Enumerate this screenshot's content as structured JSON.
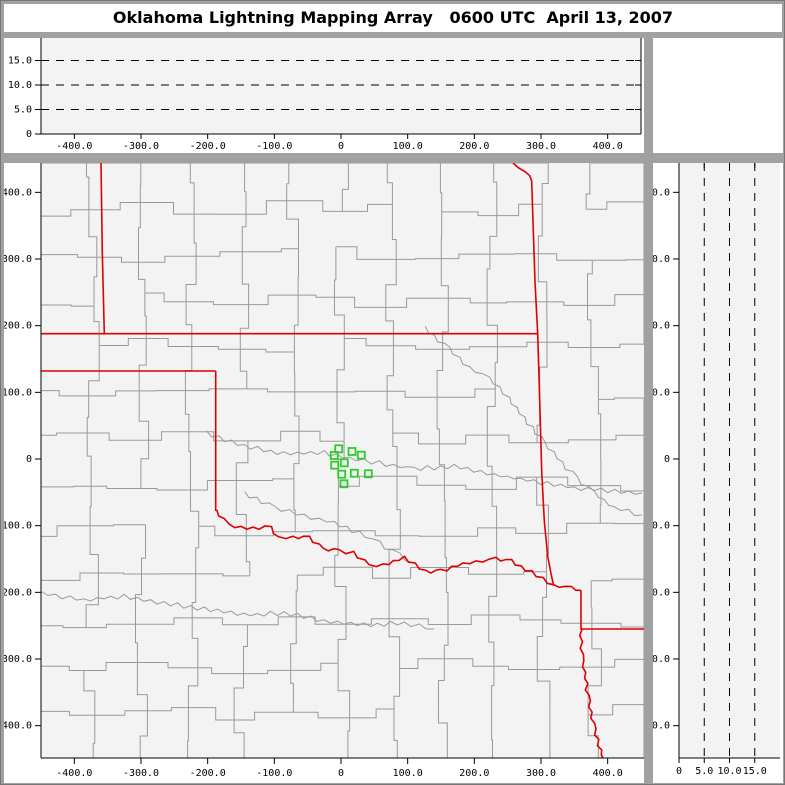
{
  "window": {
    "title": "Oklahoma Lightning Mapping Array   0600 UTC  April 13, 2007"
  },
  "colors": {
    "frame_gray": "#a1a1a1",
    "panel_white": "#ffffff",
    "plot_bg": "#f3f3f3",
    "county_line": "#999999",
    "state_border": "#e00000",
    "station_green": "#2ccc2c",
    "axis_black": "#000000"
  },
  "chart_data": {
    "type": "scatter",
    "title": "Oklahoma Lightning Mapping Array   0600 UTC  April 13, 2007",
    "description": "XLMA-style lightning mapping array display: E-W altitude cross-section (top), plan-view map with county and state borders (main), N-S altitude cross-section (right). No lightning sources plotted at this time; green squares mark LMA station locations.",
    "ew_ticks": {
      "values": [
        -400,
        -300,
        -200,
        -100,
        0,
        100,
        200,
        300,
        400
      ],
      "labels": [
        "-400.0",
        "-300.0",
        "-200.0",
        "-100.0",
        "0",
        "100.0",
        "200.0",
        "300.0",
        "400.0"
      ]
    },
    "ns_ticks": {
      "values": [
        400,
        300,
        200,
        100,
        0,
        -100,
        -200,
        -300,
        -400
      ],
      "labels": [
        "400.0",
        "300.0",
        "200.0",
        "100.0",
        "0",
        "-100.0",
        "-200.0",
        "-300.0",
        "-400.0"
      ]
    },
    "alt_ticks": {
      "values": [
        0,
        5,
        10,
        15
      ],
      "labels": [
        "0",
        "5.0",
        "10.0",
        "15.0"
      ]
    },
    "alt_ticks_top_panel": {
      "values": [
        15,
        10,
        5,
        0
      ],
      "labels": [
        "15.0",
        "10.0",
        "5.0",
        "0"
      ]
    },
    "altitude_guides_km": [
      5,
      10,
      15
    ],
    "panels": [
      {
        "id": "alt-vs-ew",
        "role": "altitude vs east-west distance",
        "xlim": [
          -450,
          456
        ],
        "ylim": [
          0,
          19.6
        ],
        "grid": "dashed-horizontal"
      },
      {
        "id": "plan-view",
        "role": "plan view map",
        "xlim": [
          -450,
          456
        ],
        "ylim": [
          -448,
          444
        ],
        "grid": "none"
      },
      {
        "id": "ns-vs-alt",
        "role": "north-south distance vs altitude",
        "xlim": [
          0,
          19.6
        ],
        "ylim": [
          -448,
          444
        ],
        "grid": "dashed-vertical"
      }
    ],
    "lightning_points": [],
    "stations_km": [
      [
        -3.5,
        15.3
      ],
      [
        16.5,
        11.3
      ],
      [
        30.5,
        5.7
      ],
      [
        -10.1,
        5.3
      ],
      [
        -9.5,
        -9.3
      ],
      [
        5.0,
        -5.7
      ],
      [
        1.1,
        -22.8
      ],
      [
        20.0,
        -21.3
      ],
      [
        41.0,
        -22.2
      ],
      [
        4.5,
        -37.2
      ]
    ],
    "state_borders_km": [
      {
        "w": false,
        "pts": [
          [
            -360,
            444
          ],
          [
            -358,
            310
          ],
          [
            -355,
            188
          ]
        ]
      },
      {
        "w": false,
        "pts": [
          [
            -450,
            188
          ],
          [
            296,
            188
          ]
        ]
      },
      {
        "w": false,
        "pts": [
          [
            258,
            444
          ],
          [
            266,
            437
          ],
          [
            276,
            431
          ],
          [
            283,
            425
          ],
          [
            286,
            417
          ],
          [
            288,
            356
          ],
          [
            291,
            266
          ],
          [
            295,
            188
          ],
          [
            298,
            88
          ],
          [
            301,
            -18
          ],
          [
            305,
            -93
          ],
          [
            310,
            -146
          ],
          [
            315,
            -172
          ],
          [
            319,
            -190
          ]
        ]
      },
      {
        "w": false,
        "pts": [
          [
            -450,
            132
          ],
          [
            -188,
            132
          ]
        ]
      },
      {
        "w": false,
        "pts": [
          [
            -188,
            132
          ],
          [
            -188,
            -78
          ]
        ]
      },
      {
        "w": true,
        "pts": [
          [
            -188,
            -78
          ],
          [
            -176,
            -90
          ],
          [
            -168,
            -99
          ],
          [
            -150,
            -103
          ],
          [
            -132,
            -105
          ],
          [
            -105,
            -102
          ],
          [
            -94,
            -119
          ],
          [
            -72,
            -117
          ],
          [
            -48,
            -117
          ],
          [
            -27,
            -136
          ],
          [
            -3,
            -138
          ],
          [
            18,
            -140
          ],
          [
            42,
            -160
          ],
          [
            64,
            -160
          ],
          [
            94,
            -148
          ],
          [
            127,
            -168
          ],
          [
            150,
            -168
          ],
          [
            183,
            -157
          ],
          [
            232,
            -150
          ],
          [
            255,
            -153
          ],
          [
            285,
            -170
          ],
          [
            319,
            -190
          ],
          [
            345,
            -194
          ],
          [
            360,
            -197
          ]
        ]
      },
      {
        "w": false,
        "pts": [
          [
            360,
            -197
          ],
          [
            360,
            -255
          ],
          [
            456,
            -255
          ]
        ]
      },
      {
        "w": true,
        "pts": [
          [
            360,
            -255
          ],
          [
            363,
            -303
          ],
          [
            372,
            -363
          ],
          [
            381,
            -405
          ],
          [
            390,
            -437
          ],
          [
            394,
            -450
          ]
        ]
      }
    ]
  }
}
